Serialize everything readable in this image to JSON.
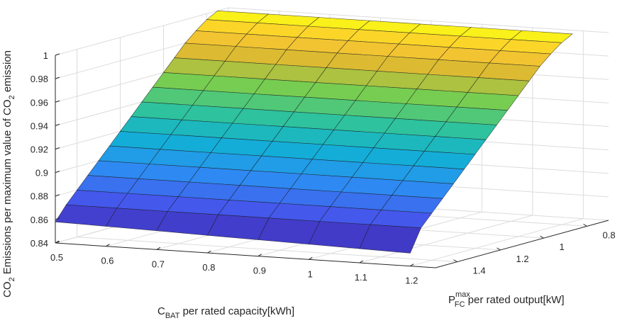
{
  "chart_data": {
    "type": "surface",
    "title": "",
    "colormap": "parula",
    "grid": true,
    "x": {
      "label": {
        "main": "C",
        "sub": "BAT",
        "rest": " per rated capacity[kWh]"
      },
      "lim": [
        0.5,
        1.25
      ],
      "ticks": [
        0.5,
        0.6,
        0.7,
        0.8,
        0.9,
        1,
        1.1,
        1.2
      ],
      "tick_labels": [
        "0.5",
        "0.6",
        "0.7",
        "0.8",
        "0.9",
        "1",
        "1.1",
        "1.2"
      ]
    },
    "y": {
      "label": {
        "main": "P",
        "sup": "max",
        "sub": "FC",
        "rest": " per rated output[kW]"
      },
      "lim": [
        0.7,
        1.5
      ],
      "ticks": [
        0.8,
        1,
        1.2,
        1.4
      ],
      "tick_labels": [
        "0.8",
        "1",
        "1.2",
        "1.4"
      ]
    },
    "z": {
      "label": {
        "pre": "CO",
        "sub1": "2",
        "mid": " Emissions per maximum value of CO",
        "sub2": "2",
        "post": " emission"
      },
      "lim": [
        0.84,
        1
      ],
      "ticks": [
        0.84,
        0.86,
        0.88,
        0.9,
        0.92,
        0.94,
        0.96,
        0.98,
        1
      ],
      "tick_labels": [
        "0.84",
        "0.86",
        "0.88",
        "0.9",
        "0.92",
        "0.94",
        "0.96",
        "0.98",
        "1"
      ]
    },
    "mesh_x": [
      0.5,
      0.6,
      0.7,
      0.8,
      0.9,
      1.0,
      1.1,
      1.2
    ],
    "mesh_y": [
      0.75,
      0.8,
      0.85,
      0.9,
      0.95,
      1.0,
      1.05,
      1.1,
      1.15,
      1.2,
      1.25,
      1.3,
      1.35,
      1.4,
      1.45,
      1.5
    ],
    "series": [
      {
        "x": 0.5,
        "z": [
          1.0,
          0.995,
          0.988,
          0.98,
          0.97,
          0.96,
          0.95,
          0.94,
          0.93,
          0.92,
          0.91,
          0.9,
          0.89,
          0.88,
          0.87,
          0.858
        ]
      },
      {
        "x": 0.6,
        "z": [
          1.0,
          0.995,
          0.988,
          0.98,
          0.97,
          0.96,
          0.95,
          0.94,
          0.93,
          0.92,
          0.91,
          0.9,
          0.89,
          0.88,
          0.87,
          0.857
        ]
      },
      {
        "x": 0.7,
        "z": [
          1.0,
          0.995,
          0.988,
          0.98,
          0.97,
          0.96,
          0.95,
          0.94,
          0.93,
          0.92,
          0.91,
          0.9,
          0.89,
          0.88,
          0.87,
          0.856
        ]
      },
      {
        "x": 0.8,
        "z": [
          1.0,
          0.995,
          0.988,
          0.98,
          0.97,
          0.96,
          0.95,
          0.94,
          0.93,
          0.92,
          0.91,
          0.9,
          0.89,
          0.88,
          0.87,
          0.855
        ]
      },
      {
        "x": 0.9,
        "z": [
          1.0,
          0.995,
          0.988,
          0.98,
          0.97,
          0.96,
          0.95,
          0.94,
          0.93,
          0.92,
          0.91,
          0.9,
          0.89,
          0.88,
          0.87,
          0.854
        ]
      },
      {
        "x": 1.0,
        "z": [
          1.0,
          0.995,
          0.988,
          0.98,
          0.97,
          0.96,
          0.95,
          0.94,
          0.93,
          0.92,
          0.91,
          0.9,
          0.89,
          0.88,
          0.87,
          0.853
        ]
      },
      {
        "x": 1.1,
        "z": [
          1.0,
          0.995,
          0.988,
          0.98,
          0.97,
          0.96,
          0.95,
          0.94,
          0.93,
          0.92,
          0.91,
          0.9,
          0.89,
          0.88,
          0.87,
          0.852
        ]
      },
      {
        "x": 1.2,
        "z": [
          1.0,
          0.995,
          0.988,
          0.98,
          0.97,
          0.96,
          0.95,
          0.94,
          0.93,
          0.92,
          0.91,
          0.9,
          0.89,
          0.88,
          0.87,
          0.851
        ]
      }
    ]
  }
}
